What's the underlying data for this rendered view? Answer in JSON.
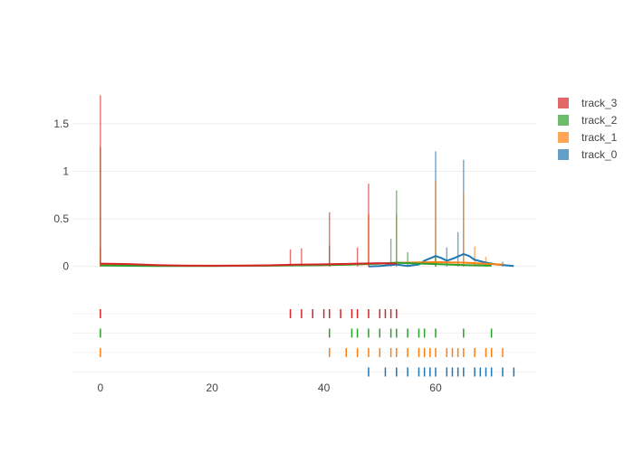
{
  "chart_data": {
    "type": "histogram_density_rug",
    "title": "",
    "xlabel": "",
    "ylabel": "",
    "xlim": [
      -5,
      78
    ],
    "ylim": [
      -0.05,
      1.85
    ],
    "x_ticks": [
      0,
      20,
      40,
      60
    ],
    "x_tick_labels": [
      "0",
      "20",
      "40",
      "60"
    ],
    "y_ticks": [
      0,
      0.5,
      1,
      1.5
    ],
    "y_tick_labels": [
      "0",
      "0.5",
      "1",
      "1.5"
    ],
    "grid": true,
    "legend_position": "top-right",
    "series": [
      {
        "name": "track_3",
        "color": "#d62728",
        "rug": [
          0,
          34,
          36,
          38,
          40,
          41,
          43,
          45,
          46,
          48,
          50,
          51,
          52,
          53
        ],
        "bars": [
          [
            0,
            1.8
          ],
          [
            34,
            0.18
          ],
          [
            36,
            0.19
          ],
          [
            41,
            0.57
          ],
          [
            46,
            0.2
          ],
          [
            48,
            0.87
          ]
        ],
        "density": [
          [
            0,
            0.03
          ],
          [
            5,
            0.025
          ],
          [
            10,
            0.015
          ],
          [
            15,
            0.008
          ],
          [
            20,
            0.007
          ],
          [
            25,
            0.008
          ],
          [
            30,
            0.012
          ],
          [
            35,
            0.018
          ],
          [
            40,
            0.022
          ],
          [
            45,
            0.028
          ],
          [
            50,
            0.035
          ],
          [
            53,
            0.03
          ]
        ]
      },
      {
        "name": "track_2",
        "color": "#2ca02c",
        "rug": [
          0,
          41,
          45,
          46,
          48,
          50,
          52,
          53,
          55,
          57,
          58,
          60,
          65,
          70
        ],
        "bars": [
          [
            0,
            1.25
          ],
          [
            41,
            0.22
          ],
          [
            52,
            0.29
          ],
          [
            53,
            0.8
          ],
          [
            55,
            0.15
          ],
          [
            60,
            0.12
          ]
        ],
        "density": [
          [
            0,
            0.01
          ],
          [
            10,
            0.005
          ],
          [
            20,
            0.004
          ],
          [
            30,
            0.008
          ],
          [
            40,
            0.015
          ],
          [
            45,
            0.02
          ],
          [
            50,
            0.03
          ],
          [
            53,
            0.04
          ],
          [
            55,
            0.035
          ],
          [
            60,
            0.025
          ],
          [
            65,
            0.015
          ],
          [
            70,
            0.008
          ]
        ]
      },
      {
        "name": "track_1",
        "color": "#ff7f0e",
        "rug": [
          0,
          41,
          44,
          46,
          48,
          50,
          52,
          53,
          55,
          57,
          58,
          59,
          60,
          62,
          63,
          64,
          65,
          67,
          69,
          70,
          72
        ],
        "bars": [
          [
            0,
            0.2
          ],
          [
            48,
            0.55
          ],
          [
            53,
            0.55
          ],
          [
            60,
            0.9
          ],
          [
            65,
            0.78
          ],
          [
            67,
            0.21
          ],
          [
            69,
            0.1
          ]
        ],
        "density": [
          [
            0,
            0.015
          ],
          [
            10,
            0.01
          ],
          [
            20,
            0.008
          ],
          [
            30,
            0.01
          ],
          [
            40,
            0.015
          ],
          [
            45,
            0.02
          ],
          [
            50,
            0.03
          ],
          [
            55,
            0.04
          ],
          [
            60,
            0.045
          ],
          [
            65,
            0.04
          ],
          [
            70,
            0.025
          ],
          [
            72,
            0.02
          ]
        ]
      },
      {
        "name": "track_0",
        "color": "#1f77b4",
        "rug": [
          48,
          51,
          53,
          55,
          57,
          58,
          59,
          60,
          62,
          63,
          64,
          65,
          67,
          68,
          69,
          70,
          72,
          74
        ],
        "bars": [
          [
            60,
            1.21
          ],
          [
            62,
            0.2
          ],
          [
            64,
            0.36
          ],
          [
            65,
            1.12
          ],
          [
            72,
            0.05
          ]
        ],
        "density": [
          [
            48,
            0.0
          ],
          [
            50,
            0.005
          ],
          [
            53,
            0.02
          ],
          [
            55,
            0.005
          ],
          [
            57,
            0.02
          ],
          [
            58,
            0.06
          ],
          [
            60,
            0.11
          ],
          [
            61,
            0.09
          ],
          [
            62,
            0.06
          ],
          [
            63,
            0.08
          ],
          [
            65,
            0.13
          ],
          [
            66,
            0.11
          ],
          [
            67,
            0.07
          ],
          [
            69,
            0.04
          ],
          [
            71,
            0.02
          ],
          [
            74,
            0.005
          ]
        ]
      }
    ]
  }
}
